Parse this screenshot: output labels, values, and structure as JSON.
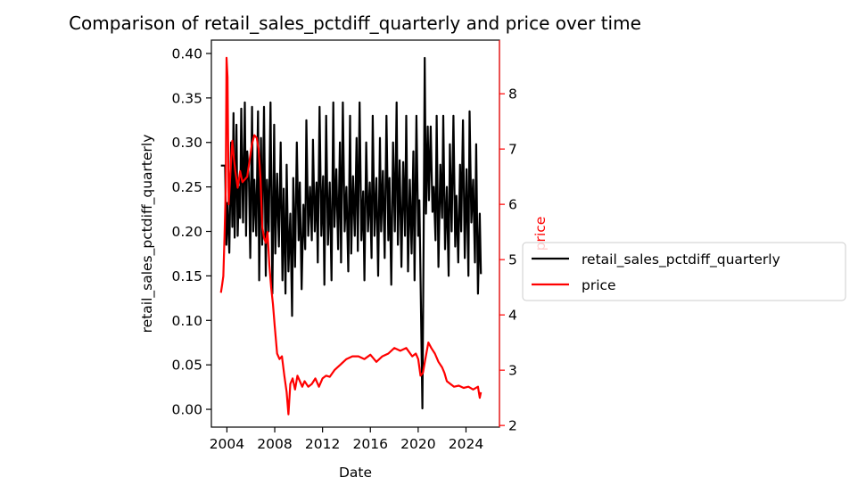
{
  "chart_data": {
    "type": "line",
    "title": "Comparison of retail_sales_pctdiff_quarterly and price over time",
    "xlabel": "Date",
    "ylabel_left": "retail_sales_pctdiff_quarterly",
    "ylabel_right": "price",
    "xlim": [
      2002.7,
      2026.8
    ],
    "ylim_left": [
      -0.02,
      0.415
    ],
    "ylim_right": [
      1.97,
      8.97
    ],
    "x_ticks": [
      2004,
      2008,
      2012,
      2016,
      2020,
      2024
    ],
    "y_left_ticks": [
      "0.00",
      "0.05",
      "0.10",
      "0.15",
      "0.20",
      "0.25",
      "0.30",
      "0.35",
      "0.40"
    ],
    "y_right_ticks": [
      "2",
      "3",
      "4",
      "5",
      "6",
      "7",
      "8"
    ],
    "grid": false,
    "legend_placement": "outside-right",
    "colors": {
      "retail": "#000000",
      "price": "#ff0000"
    },
    "series": [
      {
        "name": "retail_sales_pctdiff_quarterly",
        "axis": "left",
        "color": "#000000",
        "points": [
          [
            2003.5,
            0.274
          ],
          [
            2003.85,
            0.274
          ],
          [
            2003.95,
            0.185
          ],
          [
            2004.05,
            0.232
          ],
          [
            2004.2,
            0.176
          ],
          [
            2004.35,
            0.3
          ],
          [
            2004.45,
            0.205
          ],
          [
            2004.55,
            0.333
          ],
          [
            2004.65,
            0.193
          ],
          [
            2004.8,
            0.32
          ],
          [
            2004.9,
            0.195
          ],
          [
            2005.0,
            0.25
          ],
          [
            2005.1,
            0.215
          ],
          [
            2005.2,
            0.338
          ],
          [
            2005.35,
            0.21
          ],
          [
            2005.5,
            0.345
          ],
          [
            2005.6,
            0.195
          ],
          [
            2005.7,
            0.29
          ],
          [
            2005.85,
            0.255
          ],
          [
            2005.95,
            0.17
          ],
          [
            2006.1,
            0.34
          ],
          [
            2006.2,
            0.2
          ],
          [
            2006.3,
            0.258
          ],
          [
            2006.45,
            0.195
          ],
          [
            2006.6,
            0.335
          ],
          [
            2006.7,
            0.145
          ],
          [
            2006.85,
            0.305
          ],
          [
            2006.95,
            0.185
          ],
          [
            2007.1,
            0.34
          ],
          [
            2007.25,
            0.15
          ],
          [
            2007.35,
            0.258
          ],
          [
            2007.5,
            0.2
          ],
          [
            2007.65,
            0.345
          ],
          [
            2007.8,
            0.13
          ],
          [
            2007.95,
            0.32
          ],
          [
            2008.05,
            0.175
          ],
          [
            2008.2,
            0.265
          ],
          [
            2008.35,
            0.183
          ],
          [
            2008.5,
            0.3
          ],
          [
            2008.65,
            0.145
          ],
          [
            2008.75,
            0.248
          ],
          [
            2008.9,
            0.13
          ],
          [
            2009.0,
            0.275
          ],
          [
            2009.15,
            0.155
          ],
          [
            2009.3,
            0.22
          ],
          [
            2009.45,
            0.105
          ],
          [
            2009.55,
            0.26
          ],
          [
            2009.7,
            0.16
          ],
          [
            2009.85,
            0.3
          ],
          [
            2010.0,
            0.19
          ],
          [
            2010.1,
            0.255
          ],
          [
            2010.25,
            0.135
          ],
          [
            2010.4,
            0.23
          ],
          [
            2010.55,
            0.18
          ],
          [
            2010.65,
            0.325
          ],
          [
            2010.8,
            0.195
          ],
          [
            2010.95,
            0.25
          ],
          [
            2011.1,
            0.19
          ],
          [
            2011.2,
            0.303
          ],
          [
            2011.35,
            0.2
          ],
          [
            2011.5,
            0.255
          ],
          [
            2011.6,
            0.165
          ],
          [
            2011.75,
            0.34
          ],
          [
            2011.9,
            0.195
          ],
          [
            2012.05,
            0.262
          ],
          [
            2012.15,
            0.14
          ],
          [
            2012.3,
            0.33
          ],
          [
            2012.45,
            0.185
          ],
          [
            2012.6,
            0.255
          ],
          [
            2012.75,
            0.145
          ],
          [
            2012.9,
            0.345
          ],
          [
            2013.0,
            0.205
          ],
          [
            2013.15,
            0.27
          ],
          [
            2013.3,
            0.18
          ],
          [
            2013.45,
            0.3
          ],
          [
            2013.55,
            0.165
          ],
          [
            2013.7,
            0.345
          ],
          [
            2013.85,
            0.2
          ],
          [
            2014.0,
            0.25
          ],
          [
            2014.15,
            0.155
          ],
          [
            2014.3,
            0.33
          ],
          [
            2014.4,
            0.175
          ],
          [
            2014.55,
            0.262
          ],
          [
            2014.7,
            0.195
          ],
          [
            2014.85,
            0.305
          ],
          [
            2014.95,
            0.178
          ],
          [
            2015.1,
            0.345
          ],
          [
            2015.25,
            0.19
          ],
          [
            2015.4,
            0.245
          ],
          [
            2015.5,
            0.145
          ],
          [
            2015.65,
            0.3
          ],
          [
            2015.8,
            0.2
          ],
          [
            2015.95,
            0.255
          ],
          [
            2016.1,
            0.17
          ],
          [
            2016.2,
            0.33
          ],
          [
            2016.35,
            0.195
          ],
          [
            2016.5,
            0.26
          ],
          [
            2016.65,
            0.15
          ],
          [
            2016.8,
            0.305
          ],
          [
            2016.9,
            0.2
          ],
          [
            2017.05,
            0.268
          ],
          [
            2017.2,
            0.17
          ],
          [
            2017.35,
            0.33
          ],
          [
            2017.5,
            0.19
          ],
          [
            2017.6,
            0.26
          ],
          [
            2017.75,
            0.14
          ],
          [
            2017.9,
            0.3
          ],
          [
            2018.05,
            0.2
          ],
          [
            2018.2,
            0.345
          ],
          [
            2018.3,
            0.185
          ],
          [
            2018.45,
            0.28
          ],
          [
            2018.6,
            0.16
          ],
          [
            2018.75,
            0.278
          ],
          [
            2018.9,
            0.195
          ],
          [
            2019.0,
            0.33
          ],
          [
            2019.15,
            0.155
          ],
          [
            2019.3,
            0.258
          ],
          [
            2019.45,
            0.175
          ],
          [
            2019.6,
            0.29
          ],
          [
            2019.7,
            0.145
          ],
          [
            2019.85,
            0.33
          ],
          [
            2020.0,
            0.195
          ],
          [
            2020.1,
            0.235
          ],
          [
            2020.25,
            0.1
          ],
          [
            2020.35,
            0.001
          ],
          [
            2020.45,
            0.18
          ],
          [
            2020.55,
            0.395
          ],
          [
            2020.65,
            0.22
          ],
          [
            2020.8,
            0.318
          ],
          [
            2020.9,
            0.235
          ],
          [
            2021.05,
            0.318
          ],
          [
            2021.2,
            0.222
          ],
          [
            2021.3,
            0.25
          ],
          [
            2021.45,
            0.19
          ],
          [
            2021.55,
            0.33
          ],
          [
            2021.7,
            0.16
          ],
          [
            2021.85,
            0.275
          ],
          [
            2022.0,
            0.215
          ],
          [
            2022.1,
            0.33
          ],
          [
            2022.25,
            0.18
          ],
          [
            2022.4,
            0.25
          ],
          [
            2022.55,
            0.15
          ],
          [
            2022.65,
            0.298
          ],
          [
            2022.8,
            0.2
          ],
          [
            2022.95,
            0.33
          ],
          [
            2023.1,
            0.183
          ],
          [
            2023.2,
            0.24
          ],
          [
            2023.35,
            0.165
          ],
          [
            2023.5,
            0.275
          ],
          [
            2023.6,
            0.2
          ],
          [
            2023.75,
            0.325
          ],
          [
            2023.9,
            0.17
          ],
          [
            2024.05,
            0.27
          ],
          [
            2024.2,
            0.15
          ],
          [
            2024.3,
            0.335
          ],
          [
            2024.45,
            0.21
          ],
          [
            2024.6,
            0.258
          ],
          [
            2024.75,
            0.165
          ],
          [
            2024.85,
            0.298
          ],
          [
            2025.0,
            0.13
          ],
          [
            2025.15,
            0.22
          ],
          [
            2025.25,
            0.152
          ]
        ]
      },
      {
        "name": "price",
        "axis": "right",
        "color": "#ff0000",
        "points": [
          [
            2003.5,
            4.4
          ],
          [
            2003.6,
            4.55
          ],
          [
            2003.7,
            4.7
          ],
          [
            2003.8,
            5.4
          ],
          [
            2003.9,
            6.3
          ],
          [
            2003.97,
            8.65
          ],
          [
            2004.05,
            8.3
          ],
          [
            2004.15,
            6.0
          ],
          [
            2004.25,
            6.4
          ],
          [
            2004.35,
            6.8
          ],
          [
            2004.45,
            7.15
          ],
          [
            2004.55,
            6.9
          ],
          [
            2004.7,
            6.6
          ],
          [
            2004.9,
            6.3
          ],
          [
            2005.1,
            6.6
          ],
          [
            2005.3,
            6.4
          ],
          [
            2005.5,
            6.45
          ],
          [
            2005.7,
            6.5
          ],
          [
            2005.9,
            6.8
          ],
          [
            2006.1,
            7.1
          ],
          [
            2006.3,
            7.25
          ],
          [
            2006.5,
            7.2
          ],
          [
            2006.65,
            7.0
          ],
          [
            2006.8,
            6.5
          ],
          [
            2006.95,
            5.6
          ],
          [
            2007.1,
            5.4
          ],
          [
            2007.25,
            5.3
          ],
          [
            2007.4,
            5.5
          ],
          [
            2007.55,
            4.9
          ],
          [
            2007.7,
            4.5
          ],
          [
            2007.85,
            4.2
          ],
          [
            2008.0,
            3.8
          ],
          [
            2008.2,
            3.3
          ],
          [
            2008.4,
            3.2
          ],
          [
            2008.6,
            3.25
          ],
          [
            2008.8,
            2.9
          ],
          [
            2009.0,
            2.6
          ],
          [
            2009.15,
            2.2
          ],
          [
            2009.3,
            2.75
          ],
          [
            2009.5,
            2.85
          ],
          [
            2009.7,
            2.65
          ],
          [
            2009.9,
            2.9
          ],
          [
            2010.1,
            2.8
          ],
          [
            2010.3,
            2.7
          ],
          [
            2010.5,
            2.8
          ],
          [
            2010.8,
            2.7
          ],
          [
            2011.1,
            2.75
          ],
          [
            2011.4,
            2.85
          ],
          [
            2011.7,
            2.7
          ],
          [
            2012.0,
            2.85
          ],
          [
            2012.3,
            2.9
          ],
          [
            2012.6,
            2.88
          ],
          [
            2013.0,
            3.0
          ],
          [
            2013.5,
            3.1
          ],
          [
            2014.0,
            3.2
          ],
          [
            2014.5,
            3.25
          ],
          [
            2015.0,
            3.25
          ],
          [
            2015.5,
            3.2
          ],
          [
            2016.0,
            3.28
          ],
          [
            2016.5,
            3.15
          ],
          [
            2017.0,
            3.25
          ],
          [
            2017.5,
            3.3
          ],
          [
            2018.0,
            3.4
          ],
          [
            2018.5,
            3.35
          ],
          [
            2019.0,
            3.4
          ],
          [
            2019.5,
            3.25
          ],
          [
            2019.8,
            3.3
          ],
          [
            2020.0,
            3.2
          ],
          [
            2020.2,
            2.9
          ],
          [
            2020.4,
            2.95
          ],
          [
            2020.6,
            3.2
          ],
          [
            2020.85,
            3.5
          ],
          [
            2021.1,
            3.4
          ],
          [
            2021.4,
            3.3
          ],
          [
            2021.7,
            3.15
          ],
          [
            2022.0,
            3.05
          ],
          [
            2022.2,
            2.95
          ],
          [
            2022.4,
            2.8
          ],
          [
            2022.7,
            2.75
          ],
          [
            2023.0,
            2.7
          ],
          [
            2023.4,
            2.72
          ],
          [
            2023.8,
            2.68
          ],
          [
            2024.2,
            2.7
          ],
          [
            2024.6,
            2.65
          ],
          [
            2025.0,
            2.7
          ],
          [
            2025.15,
            2.5
          ],
          [
            2025.25,
            2.6
          ]
        ]
      }
    ]
  }
}
